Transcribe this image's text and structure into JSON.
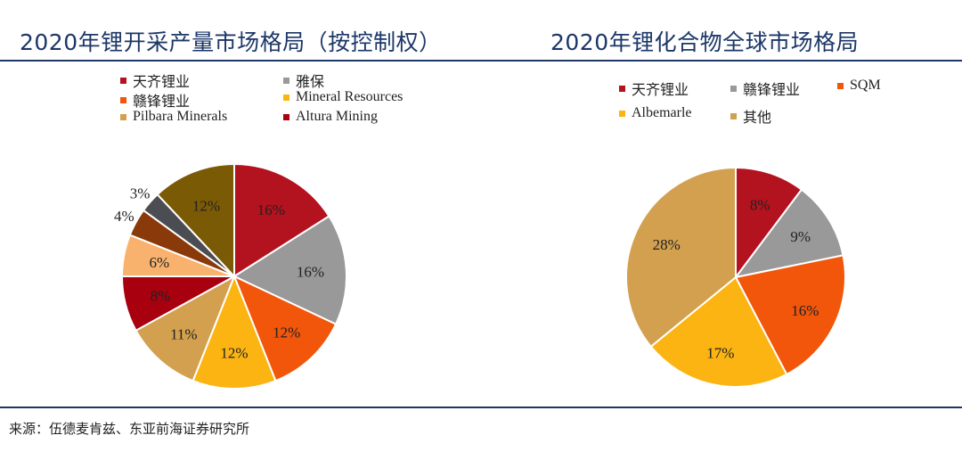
{
  "chart_data": [
    {
      "type": "pie",
      "title": "2020年锂开采产量市场格局（按控制权）",
      "legend_position": "top",
      "slices": [
        {
          "name": "天齐锂业",
          "value": 16,
          "label": "16%",
          "color": "#b3121f"
        },
        {
          "name": "雅保",
          "value": 16,
          "label": "16%",
          "color": "#999999"
        },
        {
          "name": "赣锋锂业",
          "value": 12,
          "label": "12%",
          "color": "#f1560b"
        },
        {
          "name": "Mineral Resources",
          "value": 12,
          "label": "12%",
          "color": "#fbb412"
        },
        {
          "name": "Pilbara Minerals",
          "value": 11,
          "label": "11%",
          "color": "#d3a04f"
        },
        {
          "name": "Altura Mining",
          "value": 8,
          "label": "8%",
          "color": "#a8000f"
        },
        {
          "value": 6,
          "label": "6%",
          "color": "#f8b26e"
        },
        {
          "value": 4,
          "label": "4%",
          "color": "#8a3a0a"
        },
        {
          "value": 3,
          "label": "3%",
          "color": "#4c4d52"
        },
        {
          "value": 12,
          "label": "12%",
          "color": "#7b5a05"
        }
      ]
    },
    {
      "type": "pie",
      "title": "2020年锂化合物全球市场格局",
      "legend_position": "top",
      "slices": [
        {
          "name": "天齐锂业",
          "value": 8,
          "label": "8%",
          "color": "#b3121f"
        },
        {
          "name": "赣锋锂业",
          "value": 9,
          "label": "9%",
          "color": "#999999"
        },
        {
          "name": "SQM",
          "value": 16,
          "label": "16%",
          "color": "#f1560b"
        },
        {
          "name": "Albemarle",
          "value": 17,
          "label": "17%",
          "color": "#fbb412"
        },
        {
          "name": "其他",
          "value": 28,
          "label": "28%",
          "color": "#d3a04f"
        }
      ]
    }
  ],
  "footer": {
    "source": "来源：伍德麦肯兹、东亚前海证券研究所"
  }
}
